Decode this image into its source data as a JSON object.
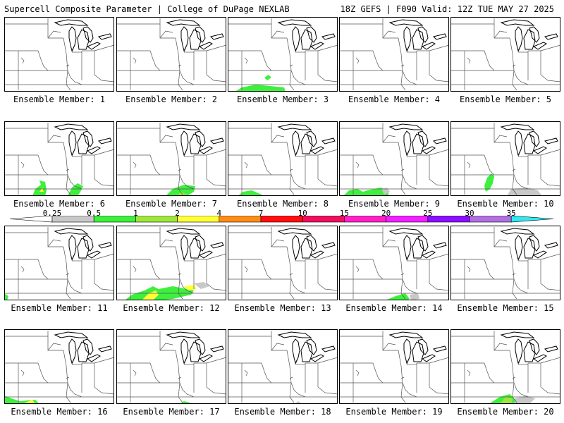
{
  "header": {
    "title": "Supercell Composite Parameter | College of DuPage NEXLAB",
    "valid": "18Z GEFS | F090 Valid: 12Z TUE MAY 27 2025"
  },
  "colorbar": {
    "levels": [
      {
        "value": "0.25",
        "color": "#c8c8c8"
      },
      {
        "value": "0.5",
        "color": "#3ef03e"
      },
      {
        "value": "1",
        "color": "#9ee63c"
      },
      {
        "value": "2",
        "color": "#ffff3a"
      },
      {
        "value": "4",
        "color": "#ff8c1a"
      },
      {
        "value": "7",
        "color": "#ff1010"
      },
      {
        "value": "10",
        "color": "#ee1060"
      },
      {
        "value": "15",
        "color": "#ff20c8"
      },
      {
        "value": "20",
        "color": "#f020ff"
      },
      {
        "value": "25",
        "color": "#8a10ff"
      },
      {
        "value": "30",
        "color": "#b070e0"
      },
      {
        "value": "35",
        "color": "#30e8f0"
      }
    ]
  },
  "colors": {
    "low": "#c8c8c8",
    "green": "#3ef03e",
    "lightgreen": "#9ee63c",
    "yellow": "#ffff3a"
  },
  "members": [
    {
      "label": "Ensemble Member: 1"
    },
    {
      "label": "Ensemble Member: 2"
    },
    {
      "label": "Ensemble Member: 3"
    },
    {
      "label": "Ensemble Member: 4"
    },
    {
      "label": "Ensemble Member: 5"
    },
    {
      "label": "Ensemble Member: 6"
    },
    {
      "label": "Ensemble Member: 7"
    },
    {
      "label": "Ensemble Member: 8"
    },
    {
      "label": "Ensemble Member: 9"
    },
    {
      "label": "Ensemble Member: 10"
    },
    {
      "label": "Ensemble Member: 11"
    },
    {
      "label": "Ensemble Member: 12"
    },
    {
      "label": "Ensemble Member: 13"
    },
    {
      "label": "Ensemble Member: 14"
    },
    {
      "label": "Ensemble Member: 15"
    },
    {
      "label": "Ensemble Member: 16"
    },
    {
      "label": "Ensemble Member: 17"
    },
    {
      "label": "Ensemble Member: 18"
    },
    {
      "label": "Ensemble Member: 19"
    },
    {
      "label": "Ensemble Member: 20"
    }
  ]
}
